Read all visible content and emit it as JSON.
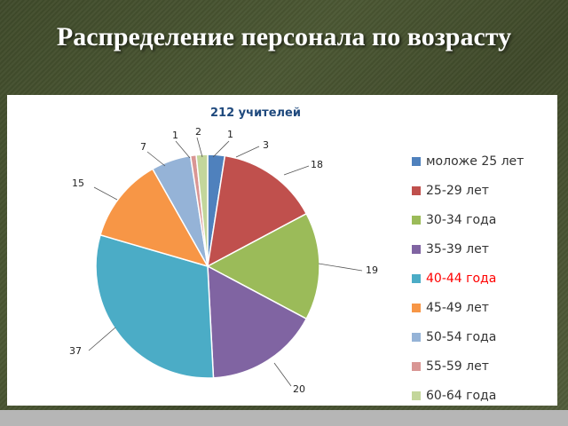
{
  "slide": {
    "title": "Распределение персонала по возрасту"
  },
  "chart_data": {
    "type": "pie",
    "title": "212 учителей",
    "categories": [
      "моложе 25 лет",
      "25-29 лет",
      "30-34 года",
      "35-39 лет",
      "40-44 года",
      "45-49 лет",
      "50-54 года",
      "55-59 лет",
      "60-64 года"
    ],
    "values": [
      3,
      18,
      19,
      20,
      37,
      15,
      7,
      1,
      2
    ],
    "colors": [
      "#4f81bd",
      "#c0504d",
      "#9bbb59",
      "#8064a2",
      "#4bacc6",
      "#f79646",
      "#95b3d7",
      "#d99694",
      "#c3d69b"
    ],
    "legend_position": "right",
    "highlighted_category": "40-44 года",
    "highlight_color": "#ff0000",
    "extra_label": {
      "value": "1"
    }
  }
}
